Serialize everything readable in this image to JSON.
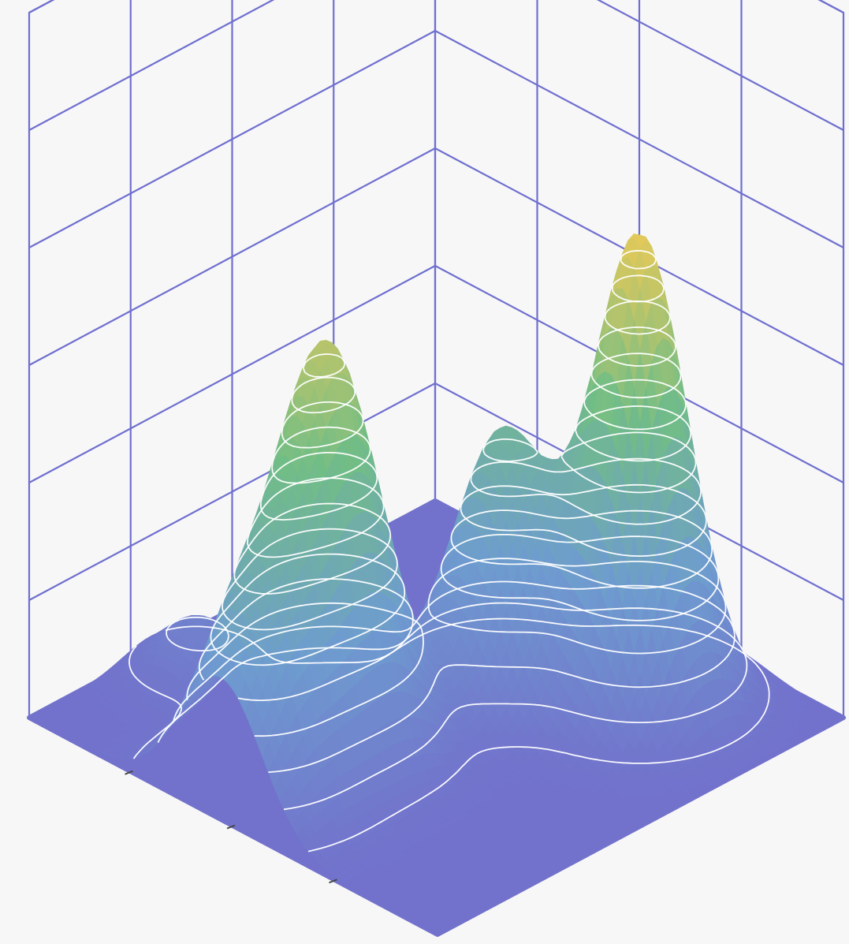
{
  "chart_data": {
    "type": "surface",
    "title": "",
    "xlabel": "",
    "ylabel": "",
    "zlabel": "",
    "grid": true,
    "colors": {
      "background": "#f7f7f7",
      "gridline": "#6f6fd0",
      "floor": "#7272cc",
      "contour": "#ffffff",
      "colormap": [
        "#7272cc",
        "#6e9ccf",
        "#71bd86",
        "#e3c95a"
      ]
    },
    "z_range": [
      0,
      1
    ],
    "contour_levels": 16,
    "peaks": [
      {
        "x": 0.27,
        "y": 0.77,
        "height": 1.0
      },
      {
        "x": 0.55,
        "y": 0.29,
        "height": 0.81
      },
      {
        "x": 0.47,
        "y": 0.63,
        "height": 0.55
      },
      {
        "x": 0.53,
        "y": 0.09,
        "height": 0.44
      },
      {
        "x": 0.89,
        "y": 0.3,
        "height": 0.12
      }
    ]
  }
}
